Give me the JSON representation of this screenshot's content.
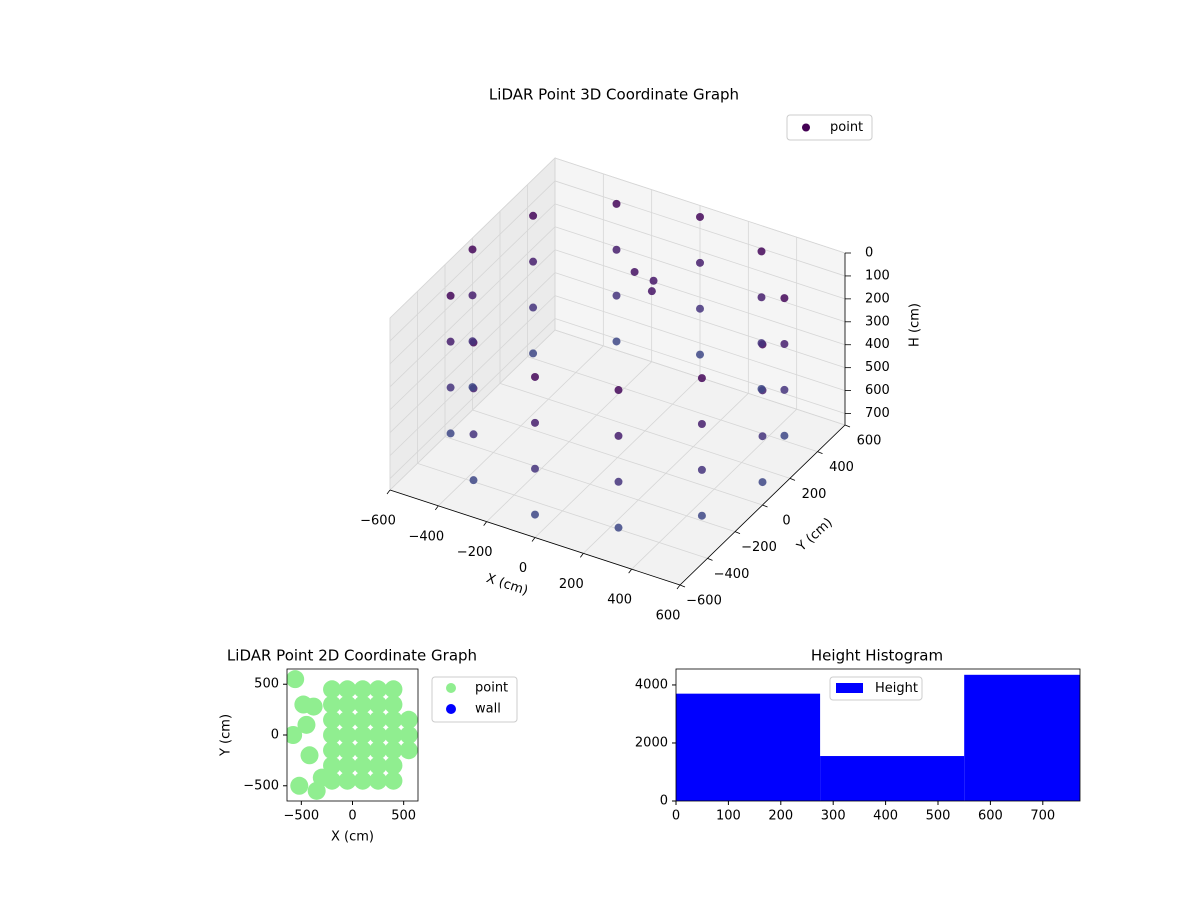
{
  "chart_data": [
    {
      "type": "scatter3d",
      "title": "LiDAR Point 3D Coordinate Graph",
      "xlabel": "X (cm)",
      "ylabel": "Y (cm)",
      "zlabel": "H (cm)",
      "xlim": [
        -600,
        600
      ],
      "ylim": [
        -600,
        600
      ],
      "zlim": [
        0,
        750
      ],
      "zinverted": true,
      "cmap": "viridis",
      "legend": "upper right",
      "xticks": [
        {
          "value": -600,
          "label": "−600"
        },
        {
          "value": -400,
          "label": "−400"
        },
        {
          "value": -200,
          "label": "−200"
        },
        0,
        200,
        400,
        600
      ],
      "yticks": [
        {
          "value": -600,
          "label": "−600"
        },
        {
          "value": -400,
          "label": "−400"
        },
        {
          "value": -200,
          "label": "−200"
        },
        0,
        200,
        400,
        600
      ],
      "zticks": [
        0,
        100,
        200,
        300,
        400,
        500,
        600,
        700
      ],
      "series": [
        {
          "name": "point",
          "color": "#440154",
          "x": [
            600,
            520,
            300,
            0,
            -300,
            -520,
            -600,
            -520,
            -300,
            0,
            300,
            520,
            600,
            520,
            300,
            0,
            -300,
            -520,
            -600,
            -520,
            -300,
            0,
            300,
            520,
            600,
            520,
            300,
            0,
            -300,
            -520,
            -600,
            -520,
            -300,
            0,
            300,
            520,
            600,
            520,
            300,
            0,
            -300,
            -520,
            -600,
            -520,
            -300,
            0,
            300,
            520,
            -100,
            -50,
            0
          ],
          "y": [
            0,
            300,
            520,
            600,
            520,
            300,
            0,
            -300,
            -520,
            -600,
            -520,
            -300,
            0,
            300,
            520,
            600,
            520,
            300,
            0,
            -300,
            -520,
            -600,
            -520,
            -300,
            0,
            300,
            520,
            600,
            520,
            300,
            0,
            -300,
            -520,
            -600,
            -520,
            -300,
            0,
            300,
            520,
            600,
            520,
            300,
            0,
            -300,
            -520,
            -600,
            -520,
            -300,
            300,
            350,
            250
          ],
          "z": [
            50,
            50,
            50,
            50,
            50,
            50,
            50,
            50,
            50,
            50,
            50,
            50,
            250,
            250,
            250,
            250,
            250,
            250,
            250,
            250,
            250,
            250,
            250,
            250,
            450,
            450,
            450,
            450,
            450,
            450,
            450,
            450,
            450,
            450,
            450,
            450,
            650,
            650,
            650,
            650,
            650,
            650,
            650,
            650,
            650,
            650,
            650,
            650,
            150,
            200,
            170
          ]
        }
      ]
    },
    {
      "type": "scatter",
      "title": "LiDAR Point 2D Coordinate Graph",
      "xlabel": "X (cm)",
      "ylabel": "Y (cm)",
      "xlim": [
        -640,
        640
      ],
      "ylim": [
        -650,
        650
      ],
      "legend": "outside right",
      "xticks": [
        {
          "value": -500,
          "label": "−500"
        },
        0,
        500
      ],
      "yticks": [
        {
          "value": -500,
          "label": "−500"
        },
        0,
        500
      ],
      "series": [
        {
          "name": "point",
          "color": "#90ee90",
          "x": [
            -200,
            -200,
            -200,
            -200,
            -200,
            -200,
            -200,
            -50,
            -50,
            -50,
            -50,
            -50,
            -50,
            -50,
            100,
            100,
            100,
            100,
            100,
            100,
            100,
            250,
            250,
            250,
            250,
            250,
            250,
            250,
            400,
            400,
            400,
            400,
            400,
            400,
            400,
            550,
            550,
            550,
            -560,
            -480,
            -580,
            -420,
            -520,
            -350,
            -450,
            -380,
            -300
          ],
          "y": [
            -450,
            -300,
            -150,
            0,
            150,
            300,
            450,
            -450,
            -300,
            -150,
            0,
            150,
            300,
            450,
            -450,
            -300,
            -150,
            0,
            150,
            300,
            450,
            -450,
            -300,
            -150,
            0,
            150,
            300,
            450,
            -450,
            -300,
            -150,
            0,
            150,
            300,
            450,
            -150,
            0,
            150,
            550,
            300,
            0,
            -200,
            -500,
            -550,
            100,
            280,
            -420
          ]
        },
        {
          "name": "wall",
          "color": "#0000ff",
          "x": [],
          "y": []
        }
      ]
    },
    {
      "type": "histogram",
      "title": "Height Histogram",
      "xlim": [
        0,
        771
      ],
      "ylim": [
        0,
        4550
      ],
      "legend": "upper center",
      "xticks": [
        0,
        100,
        200,
        300,
        400,
        500,
        600,
        700
      ],
      "yticks": [
        0,
        2000,
        4000
      ],
      "series": [
        {
          "name": "Height",
          "color": "#0000ff",
          "bins": [
            0,
            275,
            550,
            771
          ],
          "values": [
            3700,
            1550,
            4350
          ]
        }
      ]
    }
  ]
}
